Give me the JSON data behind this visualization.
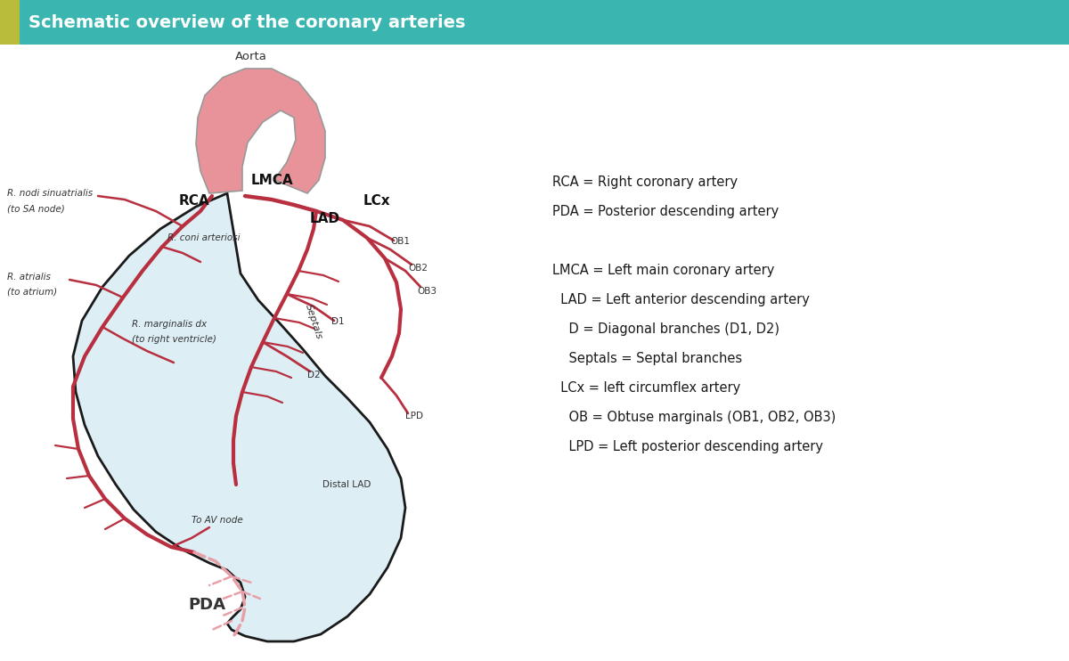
{
  "title": "Schematic overview of the coronary arteries",
  "title_bg": "#3ab5b0",
  "title_accent": "#b8bc3a",
  "title_text_color": "#ffffff",
  "bg_color": "#ffffff",
  "heart_fill": "#deeef5",
  "heart_stroke": "#1a1a1a",
  "aorta_fill": "#e8929a",
  "aorta_stroke": "#888888",
  "artery_color": "#b83040",
  "artery_dashed_color": "#e8a0a8",
  "label_color": "#333333",
  "legend_lines": [
    [
      "RCA = Right coronary artery",
      0
    ],
    [
      "PDA = Posterior descending artery",
      0
    ],
    [
      "",
      0
    ],
    [
      "LMCA = Left main coronary artery",
      0
    ],
    [
      "  LAD = Left anterior descending artery",
      1
    ],
    [
      "    D = Diagonal branches (D1, D2)",
      2
    ],
    [
      "    Septals = Septal branches",
      2
    ],
    [
      "  LCx = left circumflex artery",
      1
    ],
    [
      "    OB = Obtuse marginals (OB1, OB2, OB3)",
      2
    ],
    [
      "    LPD = Left posterior descending artery",
      2
    ]
  ]
}
